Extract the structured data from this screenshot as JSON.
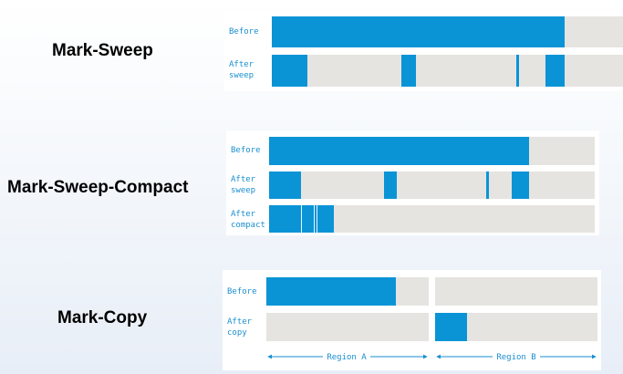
{
  "mark_sweep": {
    "title": "Mark-Sweep",
    "before_label": "Before",
    "after_label": "After\nsweep"
  },
  "mark_sweep_compact": {
    "title": "Mark-Sweep-Compact",
    "before_label": "Before",
    "after_sweep_label": "After\nsweep",
    "after_compact_label": "After\ncompact"
  },
  "mark_copy": {
    "title": "Mark-Copy",
    "before_label": "Before",
    "after_label": "After\ncopy",
    "region_a_label": "Region A",
    "region_b_label": "Region B"
  },
  "colors": {
    "live_object": "#0a94d6",
    "free_space": "#e6e4e1",
    "label_text": "#1a8fd0"
  }
}
